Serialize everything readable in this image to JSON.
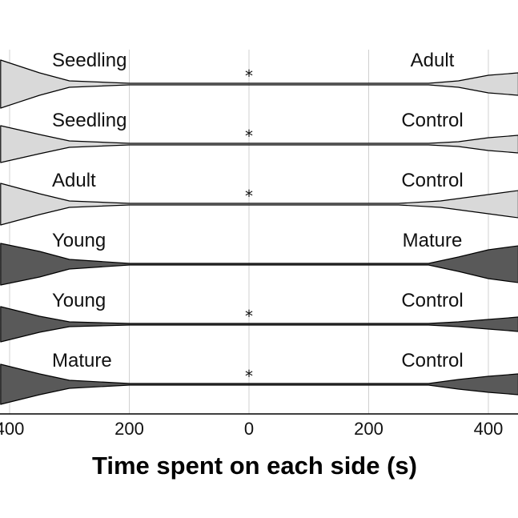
{
  "chart_data": {
    "type": "area",
    "xlabel": "Time spent on each side (s)",
    "x_tick_labels": [
      "400",
      "200",
      "0",
      "200",
      "400"
    ],
    "x_ticks": [
      -400,
      -200,
      0,
      200,
      400
    ],
    "xlim": [
      -415,
      450
    ],
    "grid": true,
    "colors": {
      "light": "#d9d9d9",
      "dark": "#595959",
      "outline": "#000000",
      "grid": "#d0d0d0"
    },
    "rows": [
      {
        "left_label": "Seedling",
        "right_label": "Adult",
        "fill": "light",
        "significance": "*",
        "left_profile": [
          [
            -415,
            30
          ],
          [
            -350,
            14
          ],
          [
            -300,
            4
          ],
          [
            -200,
            1
          ]
        ],
        "right_profile": [
          [
            300,
            1
          ],
          [
            350,
            4
          ],
          [
            400,
            11
          ],
          [
            450,
            14
          ]
        ]
      },
      {
        "left_label": "Seedling",
        "right_label": "Control",
        "fill": "light",
        "significance": "*",
        "left_profile": [
          [
            -415,
            23
          ],
          [
            -350,
            12
          ],
          [
            -300,
            4
          ],
          [
            -200,
            1
          ]
        ],
        "right_profile": [
          [
            300,
            1
          ],
          [
            350,
            3
          ],
          [
            400,
            8
          ],
          [
            450,
            11
          ]
        ]
      },
      {
        "left_label": "Adult",
        "right_label": "Control",
        "fill": "light",
        "significance": "*",
        "left_profile": [
          [
            -415,
            26
          ],
          [
            -350,
            13
          ],
          [
            -300,
            4
          ],
          [
            -200,
            1
          ]
        ],
        "right_profile": [
          [
            250,
            1
          ],
          [
            320,
            4
          ],
          [
            400,
            12
          ],
          [
            450,
            17
          ]
        ]
      },
      {
        "left_label": "Young",
        "right_label": "Mature",
        "fill": "dark",
        "significance": "",
        "left_profile": [
          [
            -415,
            26
          ],
          [
            -350,
            16
          ],
          [
            -300,
            6
          ],
          [
            -200,
            1
          ]
        ],
        "right_profile": [
          [
            300,
            1
          ],
          [
            350,
            9
          ],
          [
            400,
            18
          ],
          [
            450,
            23
          ]
        ]
      },
      {
        "left_label": "Young",
        "right_label": "Control",
        "fill": "dark",
        "significance": "*",
        "left_profile": [
          [
            -415,
            22
          ],
          [
            -350,
            10
          ],
          [
            -300,
            3
          ],
          [
            -200,
            1
          ]
        ],
        "right_profile": [
          [
            300,
            1
          ],
          [
            350,
            3
          ],
          [
            400,
            6
          ],
          [
            450,
            9
          ]
        ]
      },
      {
        "left_label": "Mature",
        "right_label": "Control",
        "fill": "dark",
        "significance": "*",
        "left_profile": [
          [
            -415,
            25
          ],
          [
            -350,
            13
          ],
          [
            -300,
            5
          ],
          [
            -200,
            1
          ]
        ],
        "right_profile": [
          [
            300,
            1
          ],
          [
            350,
            6
          ],
          [
            400,
            10
          ],
          [
            450,
            13
          ]
        ]
      }
    ]
  }
}
